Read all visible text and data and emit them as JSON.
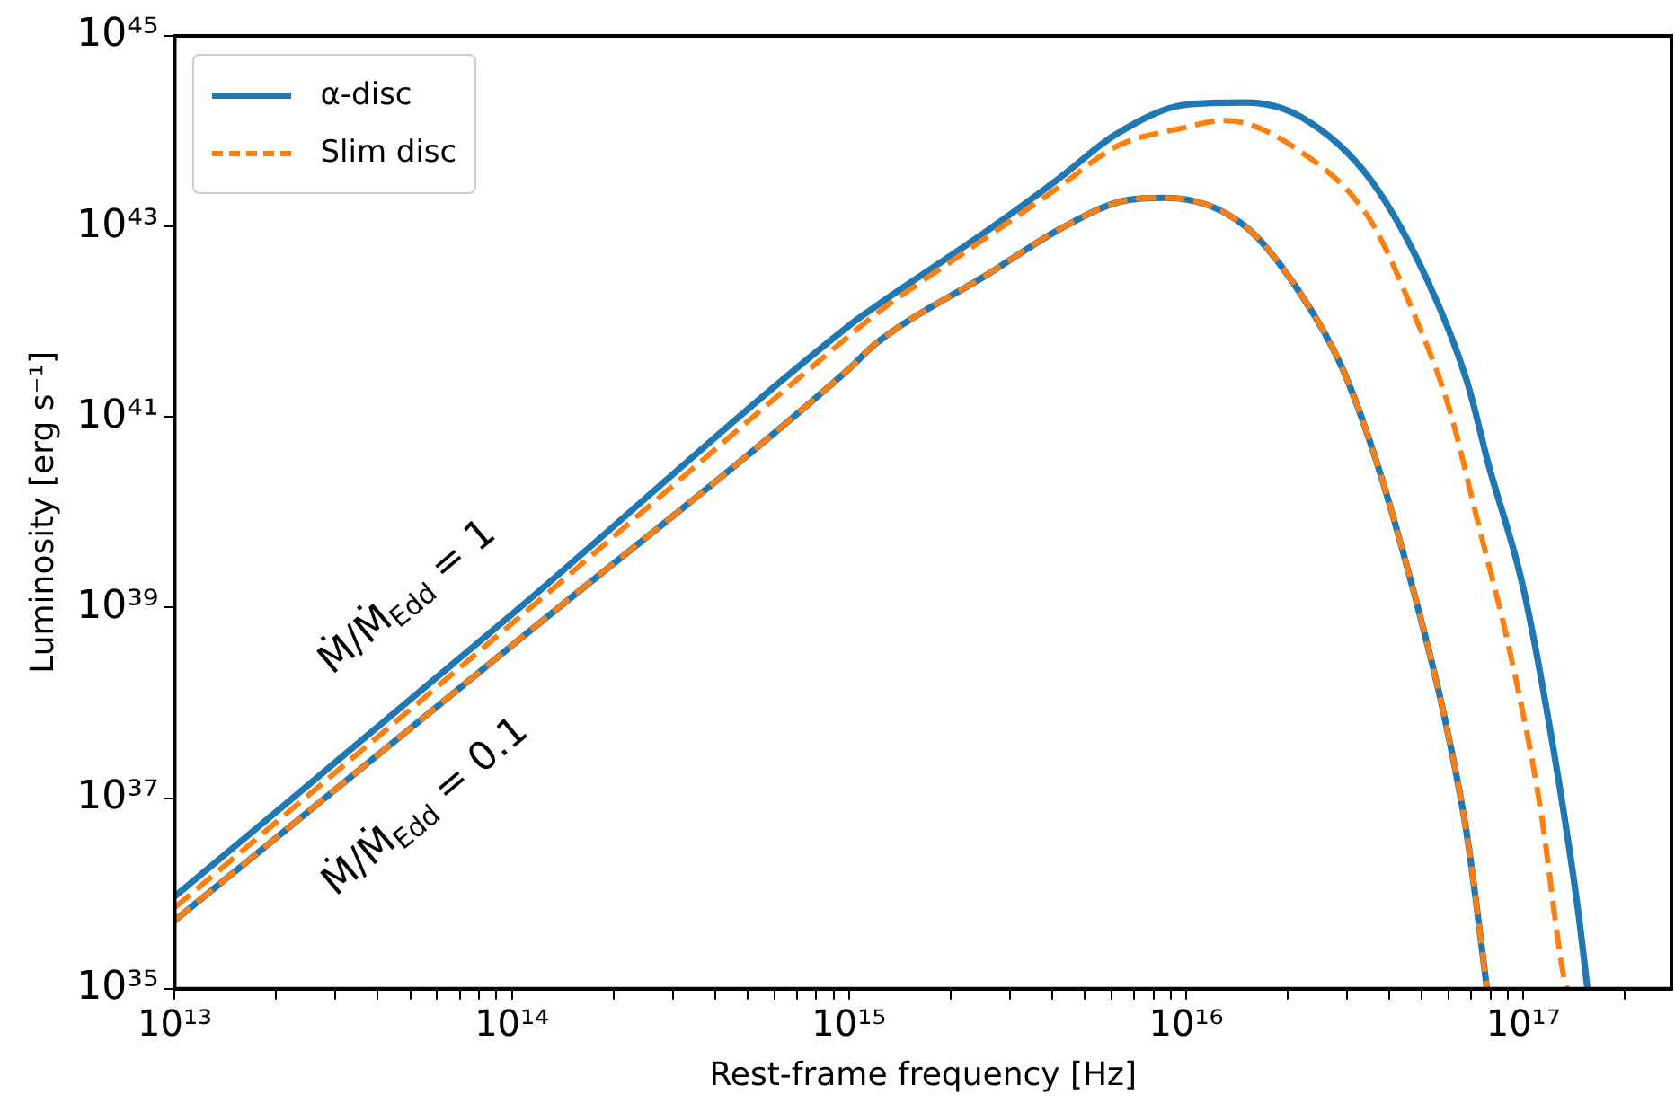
{
  "chart_data": {
    "type": "line",
    "xlabel": "Rest-frame frequency [Hz]",
    "ylabel": "Luminosity [erg s⁻¹]",
    "log": "xy",
    "legend": "top left",
    "marker": "none",
    "xlim": [
      10000000000000.0,
      2.75e+17
    ],
    "xticks": [
      {
        "value": 10000000000000.0,
        "label": "10¹³"
      },
      {
        "value": 20000000000000.0,
        "label": null
      },
      {
        "value": 30000000000000.0,
        "label": null
      },
      {
        "value": 40000000000000.0,
        "label": null
      },
      {
        "value": 50000000000000.0,
        "label": null
      },
      {
        "value": 60000000000000.0,
        "label": null
      },
      {
        "value": 70000000000000.0,
        "label": null
      },
      {
        "value": 80000000000000.0,
        "label": null
      },
      {
        "value": 90000000000000.0,
        "label": null
      },
      {
        "value": 100000000000000.0,
        "label": "10¹⁴"
      },
      {
        "value": 200000000000000.0,
        "label": null
      },
      {
        "value": 300000000000000.0,
        "label": null
      },
      {
        "value": 400000000000000.0,
        "label": null
      },
      {
        "value": 500000000000000.0,
        "label": null
      },
      {
        "value": 600000000000000.0,
        "label": null
      },
      {
        "value": 700000000000000.0,
        "label": null
      },
      {
        "value": 800000000000000.0,
        "label": null
      },
      {
        "value": 900000000000000.0,
        "label": null
      },
      {
        "value": 1000000000000000.0,
        "label": "10¹⁵"
      },
      {
        "value": 2000000000000000.0,
        "label": null
      },
      {
        "value": 3000000000000000.0,
        "label": null
      },
      {
        "value": 4000000000000000.0,
        "label": null
      },
      {
        "value": 5000000000000000.0,
        "label": null
      },
      {
        "value": 6000000000000000.0,
        "label": null
      },
      {
        "value": 7000000000000000.0,
        "label": null
      },
      {
        "value": 8000000000000000.0,
        "label": null
      },
      {
        "value": 9000000000000000.0,
        "label": null
      },
      {
        "value": 1e+16,
        "label": "10¹⁶"
      },
      {
        "value": 2e+16,
        "label": null
      },
      {
        "value": 3e+16,
        "label": null
      },
      {
        "value": 4e+16,
        "label": null
      },
      {
        "value": 5e+16,
        "label": null
      },
      {
        "value": 6e+16,
        "label": null
      },
      {
        "value": 7e+16,
        "label": null
      },
      {
        "value": 8e+16,
        "label": null
      },
      {
        "value": 9e+16,
        "label": null
      },
      {
        "value": 1e+17,
        "label": "10¹⁷"
      },
      {
        "value": 2e+17,
        "label": null
      }
    ],
    "ylim": [
      1e+35,
      1e+45
    ],
    "yticks": [
      {
        "value": 1e+35,
        "label": "10³⁵"
      },
      {
        "value": 1e+37,
        "label": "10³⁷"
      },
      {
        "value": 1e+39,
        "label": "10³⁹"
      },
      {
        "value": 1e+41,
        "label": "10⁴¹"
      },
      {
        "value": 1e+43,
        "label": "10⁴³"
      },
      {
        "value": 1e+45,
        "label": "10⁴⁵"
      }
    ],
    "series": [
      {
        "name": "α-disc",
        "color": "#1f77b4",
        "line_style": "solid",
        "x": [
          10000000000000.0,
          100000000000000.0,
          1000000000000000.0,
          1200000000000000.0,
          2600000000000000.0,
          4200000000000000.0,
          6200000000000000.0,
          1e+16,
          1.5e+16,
          2.2e+16,
          3.5e+16,
          5.2e+16,
          6.8e+16,
          7.9e+16,
          1e+17,
          1.23e+17,
          1.45e+17,
          1.55e+17
        ],
        "values": [
          9.3e+35,
          8.5e+38,
          9.1e+41,
          1.45e+42,
          9.3e+42,
          3.2e+43,
          9.3e+43,
          1.9e+44,
          2e+44,
          1.4e+44,
          3.2e+43,
          2.7e+42,
          2.4e+41,
          3.1e+40,
          1.6e+39,
          3.2e+37,
          7.1e+35,
          1e+35
        ]
      },
      {
        "name": "Slim disc",
        "color": "#ff7f0e",
        "line_style": "dashed",
        "x": [
          10000000000000.0,
          100000000000000.0,
          1000000000000000.0,
          1200000000000000.0,
          2600000000000000.0,
          4200000000000000.0,
          6200000000000000.0,
          1e+16,
          1.3e+16,
          2.2e+16,
          3.5e+16,
          4.7e+16,
          6e+16,
          7.4e+16,
          9.1e+16,
          1.12e+17,
          1.32e+17,
          1.35e+17
        ],
        "values": [
          7.1e+35,
          6.8e+38,
          7.1e+41,
          1.2e+42,
          8e+42,
          2.6e+43,
          6.9e+43,
          1.1e+44,
          1.3e+44,
          6e+43,
          1.2e+43,
          1.3e+42,
          1.3e+41,
          6.9e+39,
          3.6e+38,
          8.5e+36,
          1.3e+35,
          1e+35
        ]
      },
      {
        "color": "#1f77b4",
        "line_style": "solid",
        "x": [
          10000000000000.0,
          100000000000000.0,
          1000000000000000.0,
          1200000000000000.0,
          2600000000000000.0,
          4200000000000000.0,
          6300000000000000.0,
          8700000000000000.0,
          1.5e+16,
          2.2e+16,
          2.9e+16,
          3.7e+16,
          4.7e+16,
          5.8e+16,
          6.8e+16,
          7.6e+16,
          7.8e+16
        ],
        "values": [
          5.2e+35,
          4e+38,
          3.2e+41,
          5.9e+41,
          3.2e+42,
          9.3e+42,
          1.8e+43,
          2e+43,
          1e+43,
          1.9e+42,
          3.3e+41,
          3.1e+40,
          1.6e+39,
          7.9e+37,
          4.2e+36,
          2.1e+35,
          1e+35
        ]
      },
      {
        "color": "#ff7f0e",
        "line_style": "dashed",
        "x": [
          10000000000000.0,
          100000000000000.0,
          1000000000000000.0,
          1200000000000000.0,
          2600000000000000.0,
          4200000000000000.0,
          6300000000000000.0,
          8700000000000000.0,
          1.5e+16,
          2.2e+16,
          2.9e+16,
          3.7e+16,
          4.7e+16,
          5.8e+16,
          6.8e+16,
          7.6e+16,
          7.8e+16
        ],
        "values": [
          5.2e+35,
          4e+38,
          3.2e+41,
          5.9e+41,
          3.2e+42,
          9.3e+42,
          1.8e+43,
          2e+43,
          1e+43,
          1.9e+42,
          3.3e+41,
          3.1e+40,
          1.6e+39,
          7.9e+37,
          4.2e+36,
          2.1e+35,
          1e+35
        ]
      }
    ],
    "annotations": [
      "Ṁ/Ṁ$_{Edd}$ = 1",
      "Ṁ/Ṁ$_{Edd}$ = 0.1"
    ]
  }
}
